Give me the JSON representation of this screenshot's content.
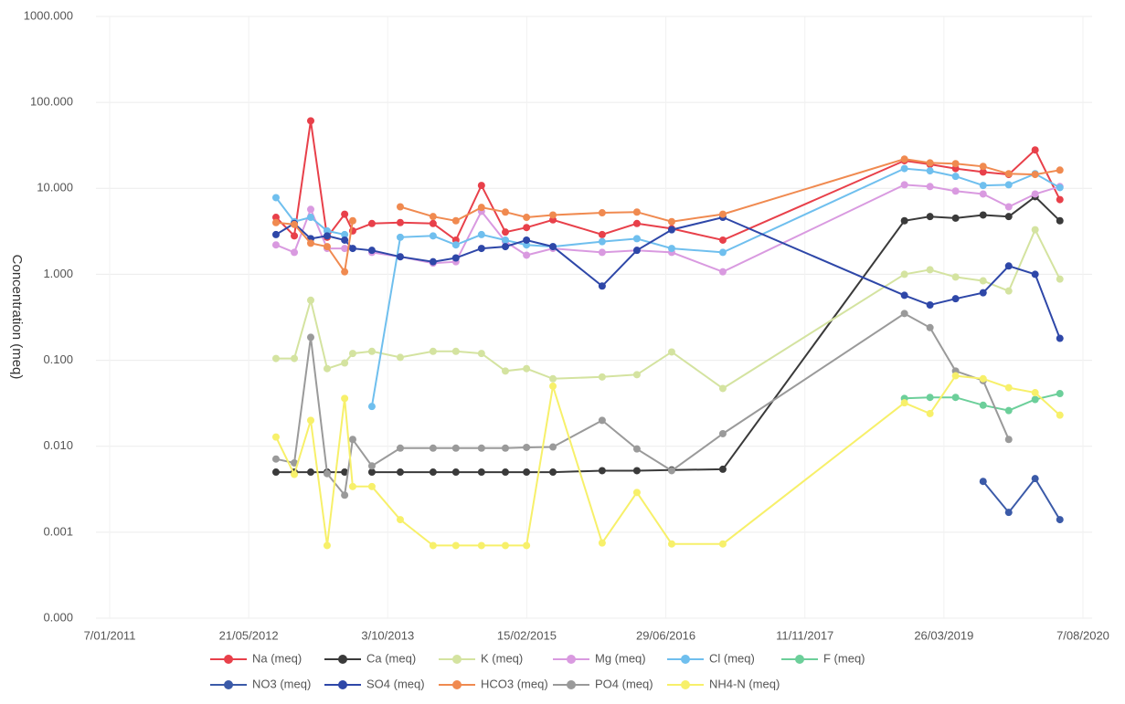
{
  "chart_data": {
    "type": "line",
    "y_label": "Concentration (meq)",
    "log_scale_y": true,
    "grid": true,
    "legend_position": "bottom",
    "xlim": [
      "2011-01-07",
      "2020-08-07"
    ],
    "xticks": [
      {
        "value": "2011-01-07",
        "label": "7/01/2011"
      },
      {
        "value": "2012-05-21",
        "label": "21/05/2012"
      },
      {
        "value": "2013-10-03",
        "label": "3/10/2013"
      },
      {
        "value": "2015-02-15",
        "label": "15/02/2015"
      },
      {
        "value": "2016-06-29",
        "label": "29/06/2016"
      },
      {
        "value": "2017-11-11",
        "label": "11/11/2017"
      },
      {
        "value": "2019-03-26",
        "label": "26/03/2019"
      },
      {
        "value": "2020-08-07",
        "label": "7/08/2020"
      }
    ],
    "ylim": [
      0.0001,
      1000
    ],
    "yticks": [
      {
        "value": 0.0001,
        "label": "0.000"
      },
      {
        "value": 0.001,
        "label": "0.001"
      },
      {
        "value": 0.01,
        "label": "0.010"
      },
      {
        "value": 0.1,
        "label": "0.100"
      },
      {
        "value": 1,
        "label": "1.000"
      },
      {
        "value": 10,
        "label": "10.000"
      },
      {
        "value": 100,
        "label": "100.000"
      },
      {
        "value": 1000,
        "label": "1000.000"
      }
    ],
    "x": [
      "2012-08-27",
      "2012-11-01",
      "2012-12-30",
      "2013-02-27",
      "2013-05-01",
      "2013-05-30",
      "2013-08-07",
      "2013-11-17",
      "2014-03-15",
      "2014-06-05",
      "2014-09-05",
      "2014-11-30",
      "2015-02-14",
      "2015-05-20",
      "2015-11-13",
      "2016-03-17",
      "2016-07-20",
      "2017-01-20",
      "2018-11-04",
      "2019-02-04",
      "2019-05-07",
      "2019-08-14",
      "2019-11-14",
      "2020-02-17",
      "2020-05-16"
    ],
    "series": [
      {
        "name": "Na (meq)",
        "color": "#e8404a",
        "values": [
          4.6,
          2.8,
          61,
          2.7,
          5.0,
          3.2,
          3.9,
          4.0,
          3.9,
          2.5,
          10.8,
          3.1,
          3.5,
          4.3,
          2.9,
          3.9,
          3.4,
          2.5,
          21,
          19,
          17,
          15.5,
          14.5,
          28,
          7.4
        ]
      },
      {
        "name": "Ca (meq)",
        "color": "#3a3a3a",
        "values": [
          0.005,
          0.005,
          0.005,
          0.005,
          0.005,
          null,
          0.005,
          0.005,
          0.005,
          0.005,
          0.005,
          0.005,
          0.005,
          0.005,
          0.0052,
          0.0052,
          0.0053,
          0.0054,
          4.2,
          4.7,
          4.5,
          4.9,
          4.7,
          8.0,
          4.2
        ]
      },
      {
        "name": "K (meq)",
        "color": "#d4e3a0",
        "values": [
          0.105,
          0.105,
          0.5,
          0.08,
          0.093,
          0.12,
          0.127,
          0.108,
          0.127,
          0.127,
          0.12,
          0.075,
          0.08,
          0.061,
          0.064,
          0.068,
          0.125,
          0.047,
          1.0,
          1.13,
          0.93,
          0.84,
          0.64,
          3.3,
          0.88
        ]
      },
      {
        "name": "Mg (meq)",
        "color": "#d99ae0",
        "values": [
          2.2,
          1.8,
          5.7,
          2.0,
          2.0,
          null,
          1.8,
          1.6,
          1.35,
          1.4,
          5.4,
          2.4,
          1.67,
          2.0,
          1.8,
          1.9,
          1.8,
          1.07,
          11,
          10.5,
          9.3,
          8.6,
          6.1,
          8.6,
          10.5
        ]
      },
      {
        "name": "Cl (meq)",
        "color": "#6fbfee",
        "values": [
          7.8,
          4.1,
          4.6,
          3.2,
          2.9,
          null,
          0.029,
          2.7,
          2.8,
          2.2,
          2.9,
          2.5,
          2.2,
          2.1,
          2.4,
          2.6,
          2.0,
          1.8,
          17,
          16,
          13.8,
          10.8,
          11,
          14.8,
          10.2
        ]
      },
      {
        "name": "F (meq)",
        "color": "#6ccf9a",
        "values": [
          null,
          null,
          null,
          null,
          null,
          null,
          null,
          null,
          null,
          null,
          null,
          null,
          null,
          null,
          null,
          null,
          null,
          null,
          0.036,
          0.037,
          0.037,
          0.03,
          0.026,
          0.035,
          0.041
        ]
      },
      {
        "name": "NO3 (meq)",
        "color": "#3b5aa8",
        "values": [
          null,
          null,
          null,
          null,
          null,
          null,
          null,
          null,
          null,
          null,
          null,
          null,
          null,
          null,
          null,
          null,
          null,
          null,
          null,
          null,
          null,
          0.0039,
          0.0017,
          0.0042,
          0.0014
        ]
      },
      {
        "name": "SO4 (meq)",
        "color": "#2e47a8",
        "values": [
          2.9,
          3.9,
          2.6,
          2.8,
          2.5,
          2.0,
          1.9,
          1.6,
          1.4,
          1.55,
          2.0,
          2.1,
          2.5,
          2.1,
          0.73,
          1.9,
          3.3,
          4.6,
          0.57,
          0.44,
          0.52,
          0.61,
          1.25,
          1.0,
          0.18
        ]
      },
      {
        "name": "HCO3 (meq)",
        "color": "#f08a50",
        "values": [
          4.0,
          3.8,
          2.3,
          2.1,
          1.07,
          4.2,
          null,
          6.1,
          4.7,
          4.2,
          6.0,
          5.3,
          4.6,
          4.9,
          5.2,
          5.3,
          4.1,
          5.0,
          21.9,
          19.8,
          19.4,
          18,
          14.8,
          14.5,
          16.3
        ]
      },
      {
        "name": "PO4 (meq)",
        "color": "#9a9a9a",
        "values": [
          0.0071,
          0.0064,
          0.185,
          0.0048,
          0.0027,
          0.012,
          0.0059,
          0.0095,
          0.0095,
          0.0095,
          0.0095,
          0.0095,
          0.0097,
          0.0098,
          0.02,
          0.0093,
          0.0052,
          0.014,
          0.35,
          0.24,
          0.075,
          0.058,
          0.012,
          null,
          null
        ]
      },
      {
        "name": "NH4-N (meq)",
        "color": "#f7f06a",
        "values": [
          0.0128,
          0.0047,
          0.02,
          0.0007,
          0.036,
          0.0034,
          0.0034,
          0.0014,
          0.0007,
          0.0007,
          0.0007,
          0.0007,
          0.0007,
          0.05,
          0.00075,
          0.0029,
          0.00073,
          0.00073,
          0.032,
          0.024,
          0.066,
          0.061,
          0.048,
          0.042,
          0.023
        ]
      }
    ]
  }
}
